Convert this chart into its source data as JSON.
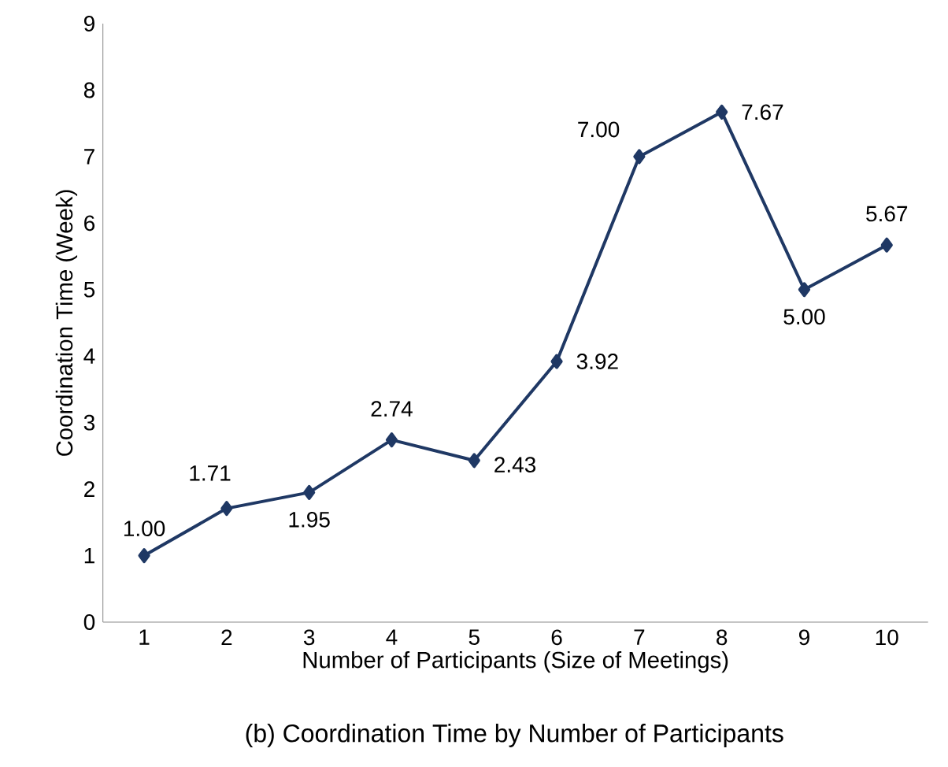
{
  "chart_data": {
    "type": "line",
    "title": "(b) Coordination Time by Number of Participants",
    "xlabel": "Number of Participants (Size of Meetings)",
    "ylabel": "Coordination Time (Week)",
    "x": [
      1,
      2,
      3,
      4,
      5,
      6,
      7,
      8,
      9,
      10
    ],
    "series": [
      {
        "color": "#1f3864",
        "values": [
          1.0,
          1.71,
          1.95,
          2.74,
          2.43,
          3.92,
          7.0,
          7.67,
          5.0,
          5.67
        ],
        "value_labels": [
          "1.00",
          "1.71",
          "1.95",
          "2.74",
          "2.43",
          "3.92",
          "7.00",
          "7.67",
          "5.00",
          "5.67"
        ]
      }
    ],
    "xlim": [
      0.5,
      10.5
    ],
    "xticks": [
      1,
      2,
      3,
      4,
      5,
      6,
      7,
      8,
      9,
      10
    ],
    "ylim": [
      0,
      9
    ],
    "yticks": [
      0,
      1,
      2,
      3,
      4,
      5,
      6,
      7,
      8,
      9
    ],
    "marker": "diamond",
    "line_style": "solid"
  }
}
